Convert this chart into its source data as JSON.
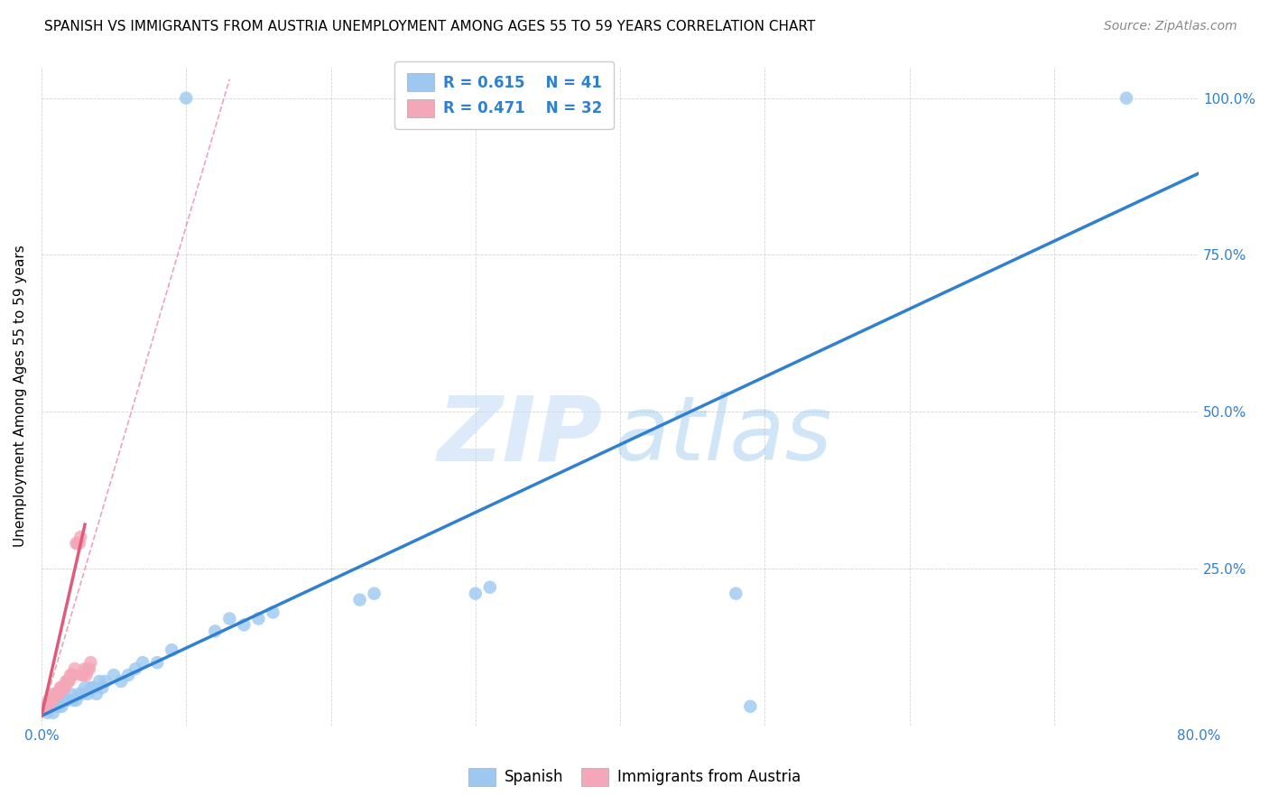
{
  "title": "SPANISH VS IMMIGRANTS FROM AUSTRIA UNEMPLOYMENT AMONG AGES 55 TO 59 YEARS CORRELATION CHART",
  "source": "Source: ZipAtlas.com",
  "xlabel": "",
  "ylabel": "Unemployment Among Ages 55 to 59 years",
  "xlim": [
    0.0,
    0.8
  ],
  "ylim": [
    0.0,
    1.05
  ],
  "x_ticks": [
    0.0,
    0.1,
    0.2,
    0.3,
    0.4,
    0.5,
    0.6,
    0.7,
    0.8
  ],
  "x_tick_labels": [
    "0.0%",
    "",
    "",
    "",
    "",
    "",
    "",
    "",
    "80.0%"
  ],
  "y_ticks": [
    0.0,
    0.25,
    0.5,
    0.75,
    1.0
  ],
  "y_tick_labels": [
    "",
    "25.0%",
    "50.0%",
    "75.0%",
    "100.0%"
  ],
  "blue_color": "#9ec8f0",
  "pink_color": "#f4a7b9",
  "blue_line_color": "#3080d0",
  "pink_line_color": "#e05a7a",
  "watermark_zip": "ZIP",
  "watermark_atlas": "atlas",
  "blue_scatter_x": [
    0.004,
    0.006,
    0.008,
    0.01,
    0.012,
    0.014,
    0.016,
    0.018,
    0.02,
    0.022,
    0.024,
    0.026,
    0.028,
    0.03,
    0.032,
    0.034,
    0.036,
    0.038,
    0.04,
    0.042,
    0.044,
    0.05,
    0.055,
    0.06,
    0.065,
    0.07,
    0.08,
    0.09,
    0.1,
    0.12,
    0.13,
    0.14,
    0.15,
    0.16,
    0.22,
    0.23,
    0.3,
    0.31,
    0.48,
    0.49,
    0.75
  ],
  "blue_scatter_y": [
    0.02,
    0.03,
    0.02,
    0.03,
    0.03,
    0.03,
    0.04,
    0.04,
    0.05,
    0.04,
    0.04,
    0.05,
    0.05,
    0.06,
    0.05,
    0.06,
    0.06,
    0.05,
    0.07,
    0.06,
    0.07,
    0.08,
    0.07,
    0.08,
    0.09,
    0.1,
    0.1,
    0.12,
    1.0,
    0.15,
    0.17,
    0.16,
    0.17,
    0.18,
    0.2,
    0.21,
    0.21,
    0.22,
    0.21,
    0.03,
    1.0
  ],
  "pink_scatter_x": [
    0.003,
    0.004,
    0.005,
    0.006,
    0.007,
    0.008,
    0.009,
    0.01,
    0.011,
    0.012,
    0.013,
    0.014,
    0.015,
    0.016,
    0.017,
    0.018,
    0.019,
    0.02,
    0.021,
    0.022,
    0.023,
    0.024,
    0.025,
    0.026,
    0.027,
    0.028,
    0.029,
    0.03,
    0.031,
    0.032,
    0.033,
    0.034
  ],
  "pink_scatter_y": [
    0.03,
    0.03,
    0.04,
    0.04,
    0.04,
    0.04,
    0.05,
    0.05,
    0.05,
    0.05,
    0.06,
    0.06,
    0.06,
    0.06,
    0.07,
    0.07,
    0.07,
    0.08,
    0.08,
    0.08,
    0.09,
    0.29,
    0.29,
    0.29,
    0.3,
    0.08,
    0.08,
    0.09,
    0.08,
    0.09,
    0.09,
    0.1
  ],
  "blue_line_x": [
    0.0,
    0.8
  ],
  "blue_line_y": [
    0.015,
    0.88
  ],
  "pink_solid_line_x": [
    0.0,
    0.03
  ],
  "pink_solid_line_y": [
    0.015,
    0.32
  ],
  "pink_dash_line_x": [
    0.0,
    0.13
  ],
  "pink_dash_line_y": [
    0.015,
    1.03
  ],
  "grid_color": "#d0d0d0",
  "tick_color": "#3080d0",
  "title_fontsize": 11,
  "axis_label_fontsize": 11,
  "tick_fontsize": 11,
  "legend_fontsize": 12
}
